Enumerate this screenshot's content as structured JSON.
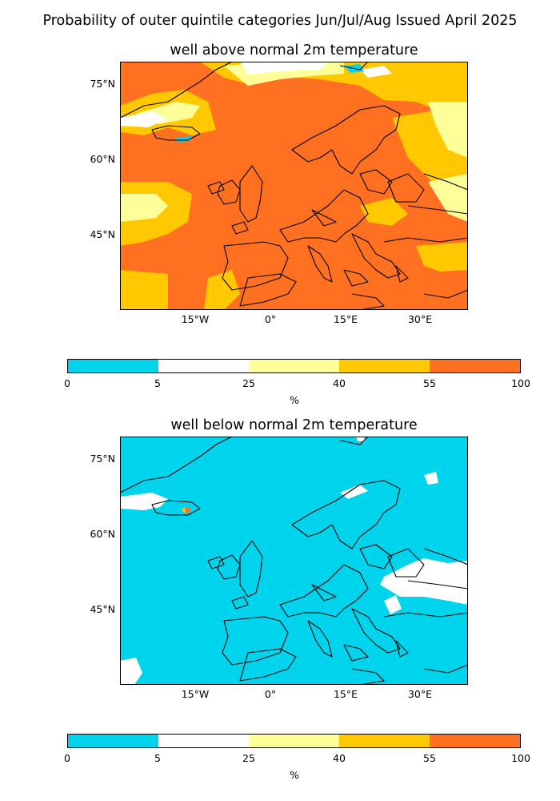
{
  "suptitle": "Probability of outer quintile categories Jun/Jul/Aug Issued April 2025",
  "colors": {
    "c0_5": "#00d4ed",
    "c5_25": "#ffffff",
    "c25_40": "#ffff99",
    "c40_55": "#ffc800",
    "c55_100": "#ff7120",
    "land_border": "#000000"
  },
  "maps": [
    {
      "title": "well above normal 2m temperature",
      "dominant_category": "55-100",
      "lat_ticks": [
        "75°N",
        "60°N",
        "45°N"
      ],
      "lon_ticks": [
        "15°W",
        "0°",
        "15°E",
        "30°E"
      ]
    },
    {
      "title": "well below normal 2m temperature",
      "dominant_category": "0-5",
      "lat_ticks": [
        "75°N",
        "60°N",
        "45°N"
      ],
      "lon_ticks": [
        "15°W",
        "0°",
        "15°E",
        "30°E"
      ]
    }
  ],
  "colorbar": {
    "ticks": [
      "0",
      "5",
      "25",
      "40",
      "55",
      "100"
    ],
    "unit": "%",
    "categories": [
      "0-5",
      "5-25",
      "25-40",
      "40-55",
      "55-100"
    ]
  }
}
